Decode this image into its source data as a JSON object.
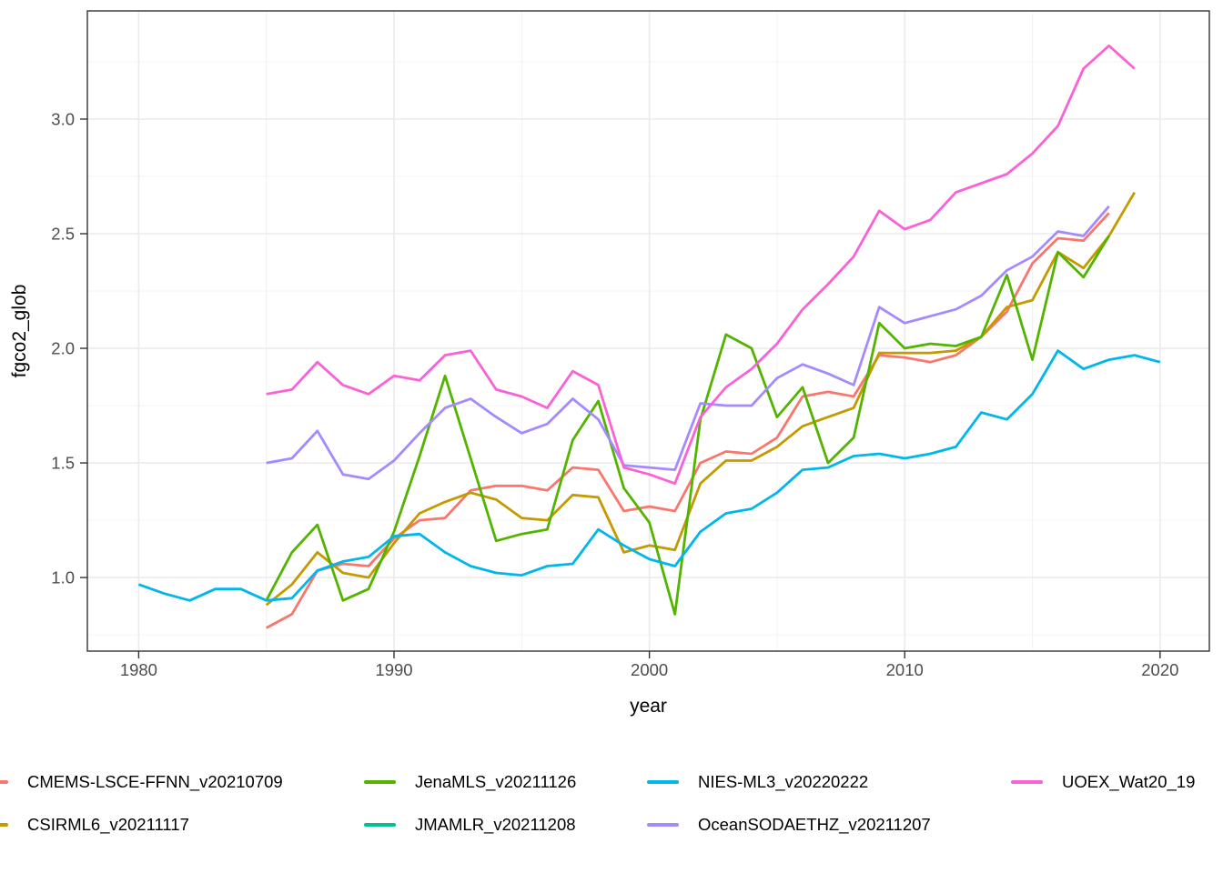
{
  "chart_data": {
    "type": "line",
    "title": "",
    "xlabel": "year",
    "ylabel": "fgco2_glob",
    "grid": true,
    "legend_position": "bottom",
    "x_domain": [
      1977.99,
      2021.93
    ],
    "y_domain": [
      0.679,
      3.472
    ],
    "x_ticks": [
      1980,
      1990,
      2000,
      2010,
      2020
    ],
    "x_tick_labels": [
      "1980",
      "1990",
      "2000",
      "2010",
      "2020"
    ],
    "x_minor_ticks": [
      1985,
      1995,
      2005,
      2015
    ],
    "y_ticks": [
      1.0,
      1.5,
      2.0,
      2.5,
      3.0
    ],
    "y_tick_labels": [
      "1.0",
      "1.5",
      "2.0",
      "2.5",
      "3.0"
    ],
    "y_minor_ticks": [
      0.75,
      1.25,
      1.75,
      2.25,
      2.75,
      3.25
    ],
    "series": [
      {
        "name": "CMEMS-LSCE-FFNN_v20210709",
        "color": "#F8766D",
        "start_year": 1985,
        "values": [
          0.78,
          0.84,
          1.03,
          1.06,
          1.05,
          1.17,
          1.25,
          1.26,
          1.38,
          1.4,
          1.4,
          1.38,
          1.48,
          1.47,
          1.29,
          1.31,
          1.29,
          1.5,
          1.55,
          1.54,
          1.61,
          1.79,
          1.81,
          1.79,
          1.97,
          1.96,
          1.94,
          1.97,
          2.05,
          2.16,
          2.37,
          2.48,
          2.47,
          2.59
        ]
      },
      {
        "name": "CSIRML6_v20211117",
        "color": "#C49A00",
        "start_year": 1985,
        "values": [
          0.88,
          0.97,
          1.11,
          1.02,
          1.0,
          1.15,
          1.28,
          1.33,
          1.37,
          1.34,
          1.26,
          1.25,
          1.36,
          1.35,
          1.11,
          1.14,
          1.12,
          1.41,
          1.51,
          1.51,
          1.57,
          1.66,
          1.7,
          1.74,
          1.98,
          1.98,
          1.98,
          1.99,
          2.05,
          2.18,
          2.21,
          2.42,
          2.35,
          2.49,
          2.68
        ]
      },
      {
        "name": "JenaMLS_v20211126",
        "color": "#53B400",
        "start_year": 1985,
        "values": [
          0.9,
          1.11,
          1.23,
          0.9,
          0.95,
          1.2,
          1.53,
          1.88,
          1.52,
          1.16,
          1.19,
          1.21,
          1.6,
          1.77,
          1.39,
          1.24,
          0.84,
          1.69,
          2.06,
          2.0,
          1.7,
          1.83,
          1.5,
          1.61,
          2.11,
          2.0,
          2.02,
          2.01,
          2.05,
          2.32,
          1.95,
          2.42,
          2.31,
          2.49
        ]
      },
      {
        "name": "JMAMLR_v20211208",
        "color": "#00C094",
        "start_year": null,
        "values": []
      },
      {
        "name": "NIES-ML3_v20220222",
        "color": "#00B6EB",
        "start_year": 1980,
        "values": [
          0.97,
          0.93,
          0.9,
          0.95,
          0.95,
          0.9,
          0.91,
          1.03,
          1.07,
          1.09,
          1.18,
          1.19,
          1.11,
          1.05,
          1.02,
          1.01,
          1.05,
          1.06,
          1.21,
          1.14,
          1.08,
          1.05,
          1.2,
          1.28,
          1.3,
          1.37,
          1.47,
          1.48,
          1.53,
          1.54,
          1.52,
          1.54,
          1.57,
          1.72,
          1.69,
          1.8,
          1.99,
          1.91,
          1.95,
          1.97,
          1.94
        ]
      },
      {
        "name": "OceanSODAETHZ_v20211207",
        "color": "#A58AFF",
        "start_year": 1985,
        "values": [
          1.5,
          1.52,
          1.64,
          1.45,
          1.43,
          1.51,
          1.63,
          1.74,
          1.78,
          1.7,
          1.63,
          1.67,
          1.78,
          1.69,
          1.49,
          1.48,
          1.47,
          1.76,
          1.75,
          1.75,
          1.87,
          1.93,
          1.89,
          1.84,
          2.18,
          2.11,
          2.14,
          2.17,
          2.23,
          2.34,
          2.4,
          2.51,
          2.49,
          2.62
        ]
      },
      {
        "name": "UOEX_Wat20_19",
        "color": "#FB61D7",
        "start_year": 1985,
        "values": [
          1.8,
          1.82,
          1.94,
          1.84,
          1.8,
          1.88,
          1.86,
          1.97,
          1.99,
          1.82,
          1.79,
          1.74,
          1.9,
          1.84,
          1.48,
          1.45,
          1.41,
          1.7,
          1.83,
          1.91,
          2.02,
          2.17,
          2.28,
          2.4,
          2.6,
          2.52,
          2.56,
          2.68,
          2.72,
          2.76,
          2.85,
          2.97,
          3.22,
          3.32,
          3.22
        ]
      }
    ]
  },
  "axes": {
    "x_title": "year",
    "y_title": "fgco2_glob"
  },
  "legend": {
    "items": [
      {
        "label": "CMEMS-LSCE-FFNN_v20210709",
        "color": "#F8766D",
        "col": 1,
        "row": 1
      },
      {
        "label": "CSIRML6_v20211117",
        "color": "#C49A00",
        "col": 1,
        "row": 2
      },
      {
        "label": "JenaMLS_v20211126",
        "color": "#53B400",
        "col": 2,
        "row": 1
      },
      {
        "label": "JMAMLR_v20211208",
        "color": "#00C094",
        "col": 2,
        "row": 2
      },
      {
        "label": "NIES-ML3_v20220222",
        "color": "#00B6EB",
        "col": 3,
        "row": 1
      },
      {
        "label": "OceanSODAETHZ_v20211207",
        "color": "#A58AFF",
        "col": 3,
        "row": 2
      },
      {
        "label": "UOEX_Wat20_19",
        "color": "#FB61D7",
        "col": 4,
        "row": 1
      }
    ]
  },
  "style_colors": {
    "panel_border": "#333333",
    "grid_major": "#EBEBEB",
    "grid_minor": "#F0F0F0",
    "tick_label": "#4D4D4D",
    "axis_title": "#000000",
    "background": "#FFFFFF"
  }
}
